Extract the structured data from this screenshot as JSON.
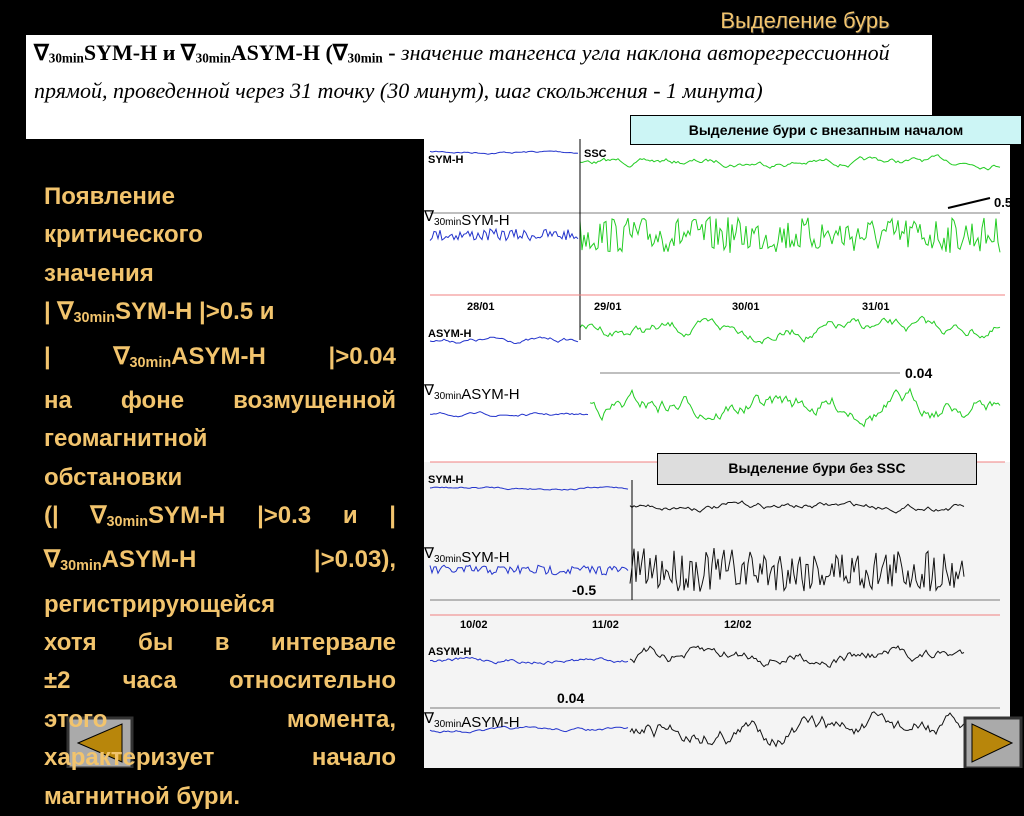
{
  "header": {
    "title": "Выделение бурь"
  },
  "definition": [
    "∇",
    {
      "sub": "30min"
    },
    "SYM-H и ∇",
    {
      "sub": "30min"
    },
    "ASYM-H (∇",
    {
      "sub": "30min"
    },
    " - ",
    {
      "i": "значение тангенса угла наклона авторегрессионной прямой, проведенной через 31 точку (30 минут), шаг скольжения - 1 минута)"
    }
  ],
  "criteria": [
    [
      "Появление"
    ],
    [
      "критического"
    ],
    [
      "значения"
    ],
    [
      "| ∇",
      {
        "sub": "30min"
      },
      "SYM-H |>0.5 и"
    ],
    [
      "|  ∇",
      {
        "sub": "30min"
      },
      "ASYM-H  |>0.04"
    ],
    [
      "на фоне возмущенной"
    ],
    [
      "геомагнитной"
    ],
    [
      "обстановки"
    ],
    [
      "(| ∇",
      {
        "sub": "30min"
      },
      "SYM-H |>0.3 и |"
    ],
    [
      "∇",
      {
        "sub": "30min"
      },
      "ASYM-H  |>0.03),"
    ],
    [
      "регистрирующейся"
    ],
    [
      "хотя бы в интервале"
    ],
    [
      "±2 часа относительно"
    ],
    [
      "этого момента,"
    ],
    [
      "характеризует начало"
    ],
    [
      "магнитной бури."
    ]
  ],
  "panel_ssc": {
    "title": "Выделение бури с внезапным началом",
    "sym_label": "SYM-H",
    "ssc_label": "SSC",
    "grad_sym_label": [
      "∇",
      {
        "sub": "30min"
      },
      "SYM-H"
    ],
    "sym_threshold": "0.5",
    "dates": [
      "28/01",
      "29/01",
      "30/01",
      "31/01"
    ],
    "asym_label": "ASYM-H",
    "grad_asym_label": [
      "∇",
      {
        "sub": "30min"
      },
      "ASYM-H"
    ],
    "asym_threshold": "0.04"
  },
  "panel_no_ssc": {
    "title": "Выделение бури без SSC",
    "sym_label": "SYM-H",
    "grad_sym_label": [
      "∇",
      {
        "sub": "30min"
      },
      "SYM-H"
    ],
    "sym_threshold": "-0.5",
    "dates": [
      "10/02",
      "11/02",
      "12/02"
    ],
    "asym_label": "ASYM-H",
    "asym_threshold": "0.04",
    "grad_asym_label": [
      "∇",
      {
        "sub": "30min"
      },
      "ASYM-H"
    ]
  }
}
